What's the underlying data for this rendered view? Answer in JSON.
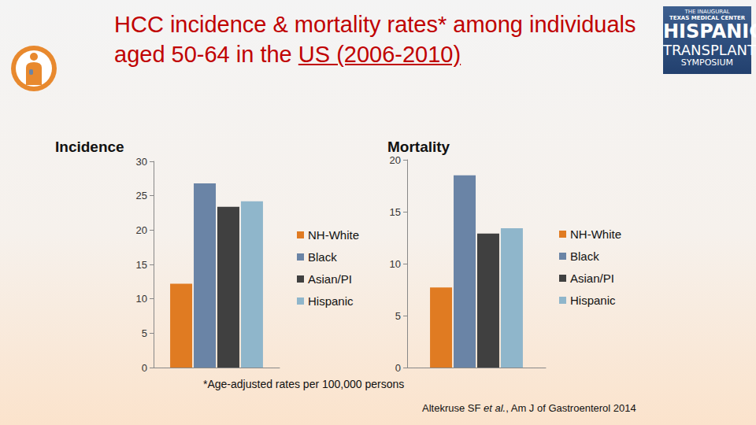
{
  "title": {
    "text": "HCC incidence & mortality rates* among individuals aged 50-64 in the US (2006-2010)",
    "underlined": "US (2006-2010)"
  },
  "footnote": "*Age-adjusted rates per 100,000 persons",
  "source": {
    "text": "Altekruse SF et al., Am J of Gastroenterol 2014",
    "italic": "et al."
  },
  "logo": [
    "THE INAUGURAL",
    "TEXAS MEDICAL CENTER",
    "HISPANIC",
    "TRANSPLANT",
    "SYMPOSIUM"
  ],
  "chart_data": [
    {
      "type": "bar",
      "title": "Incidence",
      "categories": [
        null
      ],
      "series": [
        {
          "name": "NH-White",
          "color": "#E07B22",
          "values": [
            12.2
          ]
        },
        {
          "name": "Black",
          "color": "#6A84A6",
          "values": [
            26.8
          ]
        },
        {
          "name": "Asian/PI",
          "color": "#404040",
          "values": [
            23.4
          ]
        },
        {
          "name": "Hispanic",
          "color": "#8FB6CB",
          "values": [
            24.2
          ]
        }
      ],
      "ylim": [
        0,
        30
      ],
      "yticks": [
        0,
        5,
        10,
        15,
        20,
        25,
        30
      ],
      "grid": false,
      "legend": "right"
    },
    {
      "type": "bar",
      "title": "Mortality",
      "categories": [
        null
      ],
      "series": [
        {
          "name": "NH-White",
          "color": "#E07B22",
          "values": [
            7.7
          ]
        },
        {
          "name": "Black",
          "color": "#6A84A6",
          "values": [
            18.5
          ]
        },
        {
          "name": "Asian/PI",
          "color": "#404040",
          "values": [
            12.9
          ]
        },
        {
          "name": "Hispanic",
          "color": "#8FB6CB",
          "values": [
            13.4
          ]
        }
      ],
      "ylim": [
        0,
        20
      ],
      "yticks": [
        0,
        5,
        10,
        15,
        20
      ],
      "grid": false,
      "legend": "right"
    }
  ]
}
